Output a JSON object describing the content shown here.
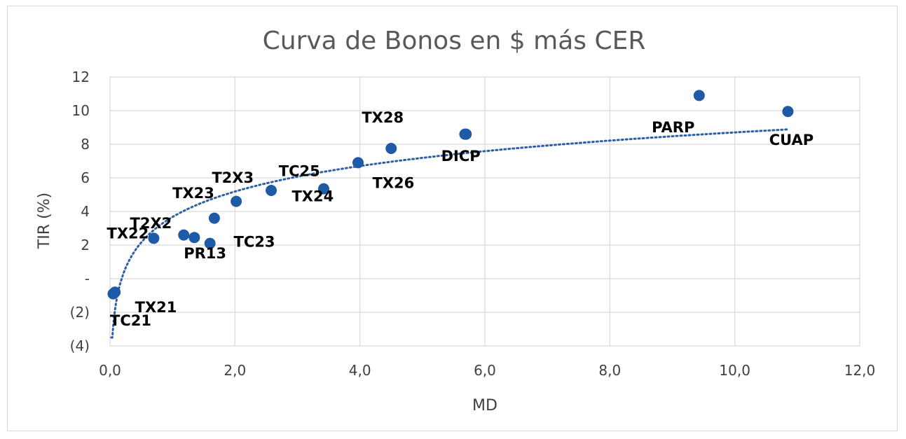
{
  "chart_data": {
    "type": "scatter",
    "title": "Curva de Bonos en $ más CER",
    "xlabel": "MD",
    "ylabel": "TIR  (%)",
    "xlim": [
      0,
      12
    ],
    "ylim": [
      -4,
      12
    ],
    "xticks": [
      0,
      2,
      4,
      6,
      8,
      10,
      12
    ],
    "xtick_labels": [
      "0,0",
      "2,0",
      "4,0",
      "6,0",
      "8,0",
      "10,0",
      "12,0"
    ],
    "yticks": [
      -4,
      -2,
      0,
      2,
      4,
      6,
      8,
      10,
      12
    ],
    "ytick_labels": [
      "(4)",
      "(2)",
      "-",
      "2",
      "4",
      "6",
      "8",
      "10",
      "12"
    ],
    "grid": true,
    "marker_color": "#1f5aa6",
    "trendline": {
      "type": "logarithmic",
      "style": "dotted",
      "color": "#2e5fa6"
    },
    "points": [
      {
        "label": "TC21",
        "x": 0.05,
        "y": -0.9
      },
      {
        "label": "TX21",
        "x": 0.08,
        "y": -0.8
      },
      {
        "label": "TX22",
        "x": 0.7,
        "y": 2.4
      },
      {
        "label": "T2X2",
        "x": 1.18,
        "y": 2.6
      },
      {
        "label": "",
        "x": 1.35,
        "y": 2.45
      },
      {
        "label": "PR13",
        "x": 1.6,
        "y": 2.1
      },
      {
        "label": "TC23",
        "x": 1.67,
        "y": 3.6
      },
      {
        "label": "TX23",
        "x": 2.02,
        "y": 4.6
      },
      {
        "label": "T2X3",
        "x": 2.58,
        "y": 5.25
      },
      {
        "label": "TC25",
        "x": 3.42,
        "y": 5.35
      },
      {
        "label": "TX24",
        "x": 3.97,
        "y": 6.9
      },
      {
        "label": "TX26",
        "x": 4.5,
        "y": 7.75
      },
      {
        "label": "TX28",
        "x": 5.68,
        "y": 8.6
      },
      {
        "label": "DICP",
        "x": 5.7,
        "y": 8.6
      },
      {
        "label": "PARP",
        "x": 9.43,
        "y": 10.9
      },
      {
        "label": "CUAP",
        "x": 10.85,
        "y": 9.95
      }
    ],
    "labels": [
      {
        "text": "TC21",
        "x": 0.0,
        "y": -2.8
      },
      {
        "text": "TX21",
        "x": 0.4,
        "y": -2.0
      },
      {
        "text": "TX22",
        "x": -0.05,
        "y": 2.4
      },
      {
        "text": "T2X2",
        "x": 0.32,
        "y": 3.0
      },
      {
        "text": "PR13",
        "x": 1.18,
        "y": 1.2
      },
      {
        "text": "TC23",
        "x": 1.98,
        "y": 1.9
      },
      {
        "text": "TX23",
        "x": 1.0,
        "y": 4.8
      },
      {
        "text": "T2X3",
        "x": 1.63,
        "y": 5.7
      },
      {
        "text": "TC25",
        "x": 2.7,
        "y": 6.1
      },
      {
        "text": "TX24",
        "x": 2.91,
        "y": 4.6
      },
      {
        "text": "TX26",
        "x": 4.2,
        "y": 5.4
      },
      {
        "text": "TX28",
        "x": 4.03,
        "y": 9.3
      },
      {
        "text": "DICP",
        "x": 5.3,
        "y": 7.0
      },
      {
        "text": "PARP",
        "x": 8.67,
        "y": 8.7
      },
      {
        "text": "CUAP",
        "x": 10.55,
        "y": 7.95
      }
    ]
  }
}
